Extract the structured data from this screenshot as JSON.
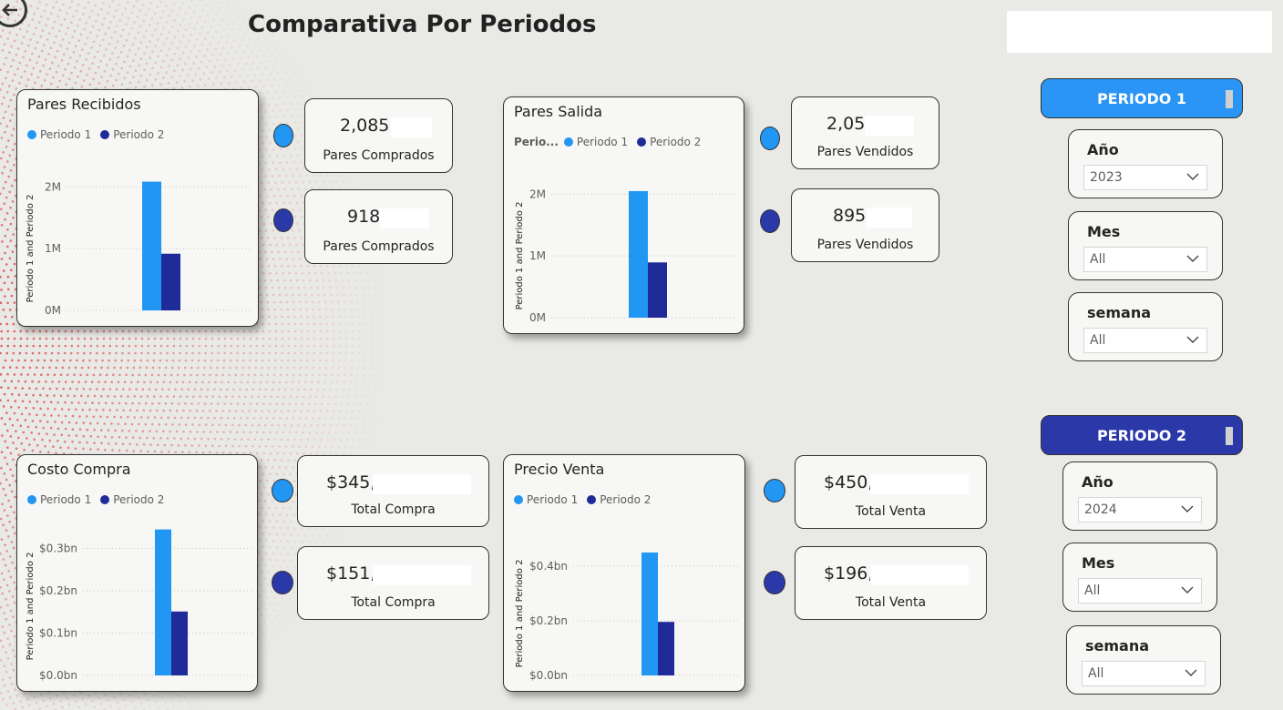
{
  "header": {
    "title": "Comparativa Por Periodos"
  },
  "colors": {
    "periodo1": "#2196f3",
    "periodo2": "#1e2b99",
    "periodo1_button": "#2a95f4",
    "periodo2_button": "#2b39a8",
    "background_dots": "#d9262c"
  },
  "legend": {
    "periodo1": "Periodo 1",
    "periodo2": "Periodo 2",
    "truncated_title": "Perio..."
  },
  "charts": {
    "pares_recibidos": {
      "title": "Pares Recibidos",
      "ylabel": "Periodo 1 and Periodo 2",
      "ticks": [
        "0M",
        "1M",
        "2M"
      ]
    },
    "pares_salida": {
      "title": "Pares Salida",
      "ylabel": "Periodo 1 and Periodo 2",
      "ticks": [
        "0M",
        "1M",
        "2M"
      ]
    },
    "costo_compra": {
      "title": "Costo Compra",
      "ylabel": "Periodo 1 and Periodo 2",
      "ticks": [
        "$0.0bn",
        "$0.1bn",
        "$0.2bn",
        "$0.3bn"
      ]
    },
    "precio_venta": {
      "title": "Precio Venta",
      "ylabel": "Periodo 1 and Periodo 2",
      "ticks": [
        "$0.0bn",
        "$0.2bn",
        "$0.4bn"
      ]
    }
  },
  "chart_data": [
    {
      "type": "bar",
      "title": "Pares Recibidos",
      "ylabel": "Periodo 1 and Periodo 2",
      "ylim": [
        0,
        2.3
      ],
      "yticks": [
        0,
        1,
        2
      ],
      "series": [
        {
          "name": "Periodo 1",
          "values": [
            2.085
          ]
        },
        {
          "name": "Periodo 2",
          "values": [
            0.918
          ]
        }
      ],
      "grid": true,
      "legend": "top-left"
    },
    {
      "type": "bar",
      "title": "Pares Salida",
      "ylabel": "Periodo 1 and Periodo 2",
      "ylim": [
        0,
        2.3
      ],
      "yticks": [
        0,
        1,
        2
      ],
      "series": [
        {
          "name": "Periodo 1",
          "values": [
            2.05
          ]
        },
        {
          "name": "Periodo 2",
          "values": [
            0.895
          ]
        }
      ],
      "grid": true,
      "legend": "top-left"
    },
    {
      "type": "bar",
      "title": "Costo Compra",
      "ylabel": "Periodo 1 and Periodo 2",
      "ylim": [
        0,
        0.37
      ],
      "yticks": [
        0,
        0.1,
        0.2,
        0.3
      ],
      "series": [
        {
          "name": "Periodo 1",
          "values": [
            0.345
          ]
        },
        {
          "name": "Periodo 2",
          "values": [
            0.151
          ]
        }
      ],
      "grid": true,
      "legend": "top-left"
    },
    {
      "type": "bar",
      "title": "Precio Venta",
      "ylabel": "Periodo 1 and Periodo 2",
      "ylim": [
        0,
        0.52
      ],
      "yticks": [
        0,
        0.2,
        0.4
      ],
      "series": [
        {
          "name": "Periodo 1",
          "values": [
            0.45
          ]
        },
        {
          "name": "Periodo 2",
          "values": [
            0.196
          ]
        }
      ],
      "grid": true,
      "legend": "top-left"
    }
  ],
  "kpis": {
    "pares_comprados_p1": {
      "value": "2,085,",
      "label": "Pares Comprados"
    },
    "pares_comprados_p2": {
      "value": "918",
      "label": "Pares Comprados"
    },
    "pares_vendidos_p1": {
      "value": "2,05",
      "label": "Pares Vendidos"
    },
    "pares_vendidos_p2": {
      "value": "895",
      "label": "Pares Vendidos"
    },
    "total_compra_p1": {
      "value": "$345,",
      "label": "Total Compra"
    },
    "total_compra_p2": {
      "value": "$151,",
      "label": "Total Compra"
    },
    "total_venta_p1": {
      "value": "$450,",
      "label": "Total Venta"
    },
    "total_venta_p2": {
      "value": "$196,",
      "label": "Total Venta"
    }
  },
  "filters": {
    "periodo1": {
      "button": "PERIODO 1",
      "year": {
        "label": "Año",
        "value": "2023"
      },
      "month": {
        "label": "Mes",
        "value": "All"
      },
      "week": {
        "label": "semana",
        "value": "All"
      }
    },
    "periodo2": {
      "button": "PERIODO 2",
      "year": {
        "label": "Año",
        "value": "2024"
      },
      "month": {
        "label": "Mes",
        "value": "All"
      },
      "week": {
        "label": "semana",
        "value": "All"
      }
    }
  }
}
